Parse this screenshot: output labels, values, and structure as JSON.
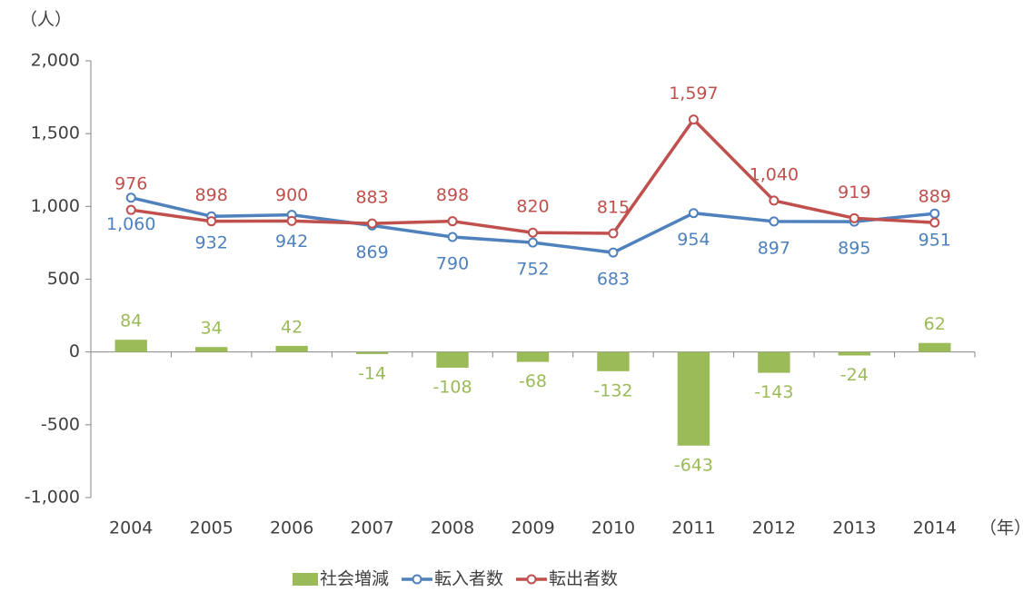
{
  "chart_data": {
    "type": "combo",
    "y_label": "（人）",
    "x_label": "（年）",
    "categories": [
      "2004",
      "2005",
      "2006",
      "2007",
      "2008",
      "2009",
      "2010",
      "2011",
      "2012",
      "2013",
      "2014"
    ],
    "series": [
      {
        "name": "社会増減",
        "type": "bar",
        "color": "#9bbb59",
        "values": [
          84,
          34,
          42,
          -14,
          -108,
          -68,
          -132,
          -643,
          -143,
          -24,
          62
        ]
      },
      {
        "name": "転入者数",
        "type": "line",
        "color": "#4f81bd",
        "label_position": "below",
        "values": [
          1060,
          932,
          942,
          869,
          790,
          752,
          683,
          954,
          897,
          895,
          951
        ],
        "value_labels": [
          "1,060",
          "932",
          "942",
          "869",
          "790",
          "752",
          "683",
          "954",
          "897",
          "895",
          "951"
        ]
      },
      {
        "name": "転出者数",
        "type": "line",
        "color": "#c0504d",
        "label_position": "above",
        "values": [
          976,
          898,
          900,
          883,
          898,
          820,
          815,
          1597,
          1040,
          919,
          889
        ],
        "value_labels": [
          "976",
          "898",
          "900",
          "883",
          "898",
          "820",
          "815",
          "1,597",
          "1,040",
          "919",
          "889"
        ]
      }
    ],
    "ylim": [
      -1000,
      2000
    ],
    "yticks": [
      {
        "value": -1000,
        "label": "-1,000"
      },
      -500,
      0,
      500,
      {
        "value": 1000,
        "label": "1,000"
      },
      {
        "value": 1500,
        "label": "1,500"
      },
      {
        "value": 2000,
        "label": "2,000"
      }
    ],
    "grid": false,
    "legend": "bottom"
  }
}
